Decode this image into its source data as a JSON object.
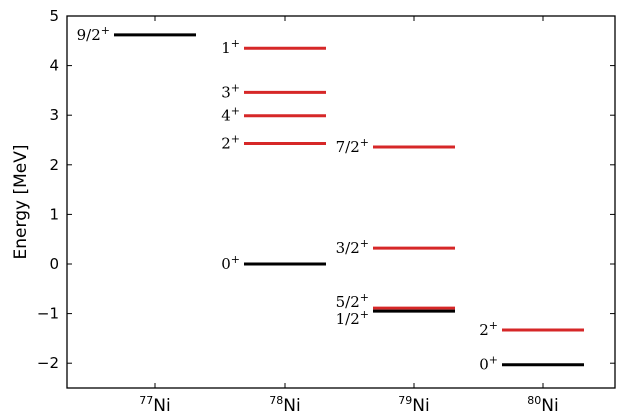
{
  "chart_data": {
    "type": "level_scheme",
    "ylabel": "Energy [MeV]",
    "ylim": [
      -2.5,
      5
    ],
    "yticks": [
      -2,
      -1,
      0,
      1,
      2,
      3,
      4,
      5
    ],
    "ytick_labels": [
      "−2",
      "−1",
      "0",
      "1",
      "2",
      "3",
      "4",
      "5"
    ],
    "categories": [
      {
        "mass": "77",
        "element": "Ni"
      },
      {
        "mass": "78",
        "element": "Ni"
      },
      {
        "mass": "79",
        "element": "Ni"
      },
      {
        "mass": "80",
        "element": "Ni"
      }
    ],
    "levels": [
      {
        "nucleus": 0,
        "energy": 4.62,
        "spin": "9/2",
        "parity": "+",
        "color": "#000000"
      },
      {
        "nucleus": 1,
        "energy": 4.35,
        "spin": "1",
        "parity": "+",
        "color": "#d62728"
      },
      {
        "nucleus": 1,
        "energy": 3.46,
        "spin": "3",
        "parity": "+",
        "color": "#d62728"
      },
      {
        "nucleus": 1,
        "energy": 2.99,
        "spin": "4",
        "parity": "+",
        "color": "#d62728"
      },
      {
        "nucleus": 1,
        "energy": 2.43,
        "spin": "2",
        "parity": "+",
        "color": "#d62728"
      },
      {
        "nucleus": 1,
        "energy": 0.0,
        "spin": "0",
        "parity": "+",
        "color": "#000000"
      },
      {
        "nucleus": 2,
        "energy": 2.36,
        "spin": "7/2",
        "parity": "+",
        "color": "#d62728"
      },
      {
        "nucleus": 2,
        "energy": 0.32,
        "spin": "3/2",
        "parity": "+",
        "color": "#d62728"
      },
      {
        "nucleus": 2,
        "energy": -0.89,
        "spin": "5/2",
        "parity": "+",
        "color": "#d62728"
      },
      {
        "nucleus": 2,
        "energy": -0.95,
        "spin": "1/2",
        "parity": "+",
        "color": "#000000"
      },
      {
        "nucleus": 3,
        "energy": -1.33,
        "spin": "2",
        "parity": "+",
        "color": "#d62728"
      },
      {
        "nucleus": 3,
        "energy": -2.03,
        "spin": "0",
        "parity": "+",
        "color": "#000000"
      }
    ],
    "label_offsets_note": "",
    "grid": false
  }
}
